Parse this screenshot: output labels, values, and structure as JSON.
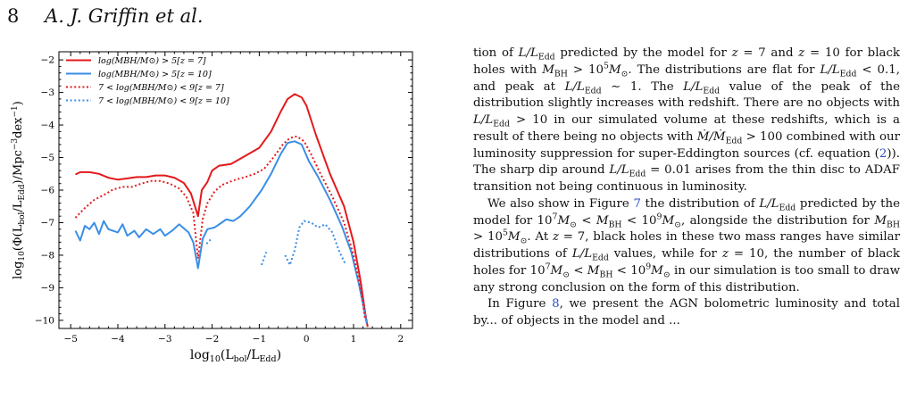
{
  "header": {
    "page_number": "8",
    "authors": "A. J. Griffin et al."
  },
  "figure": {
    "chart_data": {
      "type": "line",
      "xlabel": "log10(Lbol/LEdd)",
      "ylabel": "log10(Φ(Lbol/LEdd)/Mpc−3dex−1)",
      "xlim": [
        -5.25,
        2.25
      ],
      "ylim": [
        -10.25,
        -1.75
      ],
      "xticks": [
        -5,
        -4,
        -3,
        -2,
        -1,
        0,
        1,
        2
      ],
      "yticks": [
        -10,
        -9,
        -8,
        -7,
        -6,
        -5,
        -4,
        -3,
        -2
      ],
      "grid": false,
      "legend_position": "top-left",
      "series": [
        {
          "name": "log(MBH/M⊙) > 5[z = 7]",
          "color": "#e41a1c",
          "style": "solid",
          "points": [
            [
              -4.9,
              -5.52
            ],
            [
              -4.8,
              -5.45
            ],
            [
              -4.6,
              -5.45
            ],
            [
              -4.4,
              -5.5
            ],
            [
              -4.2,
              -5.62
            ],
            [
              -4.0,
              -5.68
            ],
            [
              -3.8,
              -5.64
            ],
            [
              -3.6,
              -5.6
            ],
            [
              -3.4,
              -5.6
            ],
            [
              -3.2,
              -5.55
            ],
            [
              -3.0,
              -5.55
            ],
            [
              -2.8,
              -5.62
            ],
            [
              -2.6,
              -5.78
            ],
            [
              -2.45,
              -6.1
            ],
            [
              -2.3,
              -6.8
            ],
            [
              -2.22,
              -6.0
            ],
            [
              -2.1,
              -5.75
            ],
            [
              -2.0,
              -5.4
            ],
            [
              -1.85,
              -5.25
            ],
            [
              -1.6,
              -5.2
            ],
            [
              -1.3,
              -4.95
            ],
            [
              -1.0,
              -4.7
            ],
            [
              -0.75,
              -4.2
            ],
            [
              -0.55,
              -3.6
            ],
            [
              -0.4,
              -3.2
            ],
            [
              -0.25,
              -3.05
            ],
            [
              -0.1,
              -3.15
            ],
            [
              0.0,
              -3.4
            ],
            [
              0.2,
              -4.3
            ],
            [
              0.5,
              -5.5
            ],
            [
              0.8,
              -6.5
            ],
            [
              1.0,
              -7.6
            ],
            [
              1.15,
              -8.8
            ],
            [
              1.25,
              -9.8
            ],
            [
              1.3,
              -10.2
            ]
          ]
        },
        {
          "name": "log(MBH/M⊙) > 5[z = 10]",
          "color": "#3a8ee6",
          "style": "solid",
          "points": [
            [
              -4.9,
              -7.25
            ],
            [
              -4.8,
              -7.55
            ],
            [
              -4.7,
              -7.1
            ],
            [
              -4.6,
              -7.2
            ],
            [
              -4.5,
              -7.0
            ],
            [
              -4.4,
              -7.35
            ],
            [
              -4.3,
              -6.95
            ],
            [
              -4.2,
              -7.2
            ],
            [
              -4.0,
              -7.3
            ],
            [
              -3.9,
              -7.05
            ],
            [
              -3.8,
              -7.4
            ],
            [
              -3.65,
              -7.25
            ],
            [
              -3.55,
              -7.45
            ],
            [
              -3.4,
              -7.2
            ],
            [
              -3.25,
              -7.35
            ],
            [
              -3.1,
              -7.2
            ],
            [
              -3.0,
              -7.4
            ],
            [
              -2.85,
              -7.25
            ],
            [
              -2.7,
              -7.05
            ],
            [
              -2.5,
              -7.3
            ],
            [
              -2.4,
              -7.6
            ],
            [
              -2.3,
              -8.4
            ],
            [
              -2.2,
              -7.5
            ],
            [
              -2.1,
              -7.2
            ],
            [
              -1.95,
              -7.15
            ],
            [
              -1.8,
              -7.0
            ],
            [
              -1.7,
              -6.9
            ],
            [
              -1.55,
              -6.95
            ],
            [
              -1.4,
              -6.8
            ],
            [
              -1.2,
              -6.5
            ],
            [
              -0.95,
              -6.0
            ],
            [
              -0.75,
              -5.5
            ],
            [
              -0.55,
              -4.9
            ],
            [
              -0.4,
              -4.55
            ],
            [
              -0.25,
              -4.5
            ],
            [
              -0.1,
              -4.6
            ],
            [
              0.05,
              -5.1
            ],
            [
              0.25,
              -5.6
            ],
            [
              0.5,
              -6.3
            ],
            [
              0.75,
              -7.1
            ],
            [
              0.95,
              -7.9
            ],
            [
              1.1,
              -8.8
            ],
            [
              1.2,
              -9.5
            ],
            [
              1.28,
              -10.1
            ]
          ]
        },
        {
          "name": "7 < log(MBH/M⊙) < 9[z = 7]",
          "color": "#e41a1c",
          "style": "dotted",
          "points": [
            [
              -4.9,
              -6.85
            ],
            [
              -4.7,
              -6.55
            ],
            [
              -4.5,
              -6.3
            ],
            [
              -4.3,
              -6.15
            ],
            [
              -4.1,
              -5.98
            ],
            [
              -3.9,
              -5.9
            ],
            [
              -3.7,
              -5.9
            ],
            [
              -3.5,
              -5.8
            ],
            [
              -3.3,
              -5.72
            ],
            [
              -3.1,
              -5.72
            ],
            [
              -2.9,
              -5.8
            ],
            [
              -2.7,
              -5.95
            ],
            [
              -2.55,
              -6.2
            ],
            [
              -2.4,
              -6.7
            ],
            [
              -2.3,
              -8.1
            ],
            [
              -2.2,
              -6.9
            ],
            [
              -2.1,
              -6.4
            ],
            [
              -1.95,
              -6.05
            ],
            [
              -1.8,
              -5.85
            ],
            [
              -1.55,
              -5.7
            ],
            [
              -1.3,
              -5.6
            ],
            [
              -1.1,
              -5.5
            ],
            [
              -0.9,
              -5.35
            ],
            [
              -0.7,
              -5.0
            ],
            [
              -0.5,
              -4.6
            ],
            [
              -0.35,
              -4.4
            ],
            [
              -0.2,
              -4.35
            ],
            [
              -0.05,
              -4.5
            ],
            [
              0.1,
              -4.9
            ],
            [
              0.3,
              -5.5
            ],
            [
              0.55,
              -6.2
            ],
            [
              0.8,
              -7.0
            ],
            [
              1.0,
              -8.0
            ],
            [
              1.15,
              -9.0
            ],
            [
              1.25,
              -10.0
            ]
          ]
        },
        {
          "name": "7 < log(MBH/M⊙) < 9[z = 10]",
          "color": "#3a8ee6",
          "style": "dotted",
          "segments": [
            [
              [
                -2.12,
                -7.65
              ],
              [
                -2.02,
                -7.5
              ]
            ],
            [
              [
                -0.95,
                -8.3
              ],
              [
                -0.85,
                -7.9
              ]
            ],
            [
              [
                -0.45,
                -8.0
              ],
              [
                -0.35,
                -8.3
              ],
              [
                -0.25,
                -7.85
              ],
              [
                -0.15,
                -7.15
              ],
              [
                -0.05,
                -6.95
              ],
              [
                0.1,
                -7.0
              ],
              [
                0.25,
                -7.15
              ],
              [
                0.4,
                -7.05
              ],
              [
                0.55,
                -7.3
              ],
              [
                0.7,
                -7.9
              ],
              [
                0.82,
                -8.25
              ]
            ]
          ]
        }
      ]
    }
  },
  "body_text": {
    "p1": [
      {
        "t": "tion of "
      },
      {
        "t": "L/L",
        "i": true
      },
      {
        "t": "Edd",
        "sub": true
      },
      {
        "t": " predicted by the model for "
      },
      {
        "t": "z",
        "i": true
      },
      {
        "t": " = 7 and "
      },
      {
        "t": "z",
        "i": true
      },
      {
        "t": " = 10 for black holes with "
      },
      {
        "t": "M",
        "i": true
      },
      {
        "t": "BH",
        "sub": true
      },
      {
        "t": " > 10"
      },
      {
        "t": "5",
        "sup": true
      },
      {
        "t": "M",
        "i": true
      },
      {
        "t": "⊙",
        "sub": true
      },
      {
        "t": ". The distributions are flat for "
      },
      {
        "t": "L/L",
        "i": true
      },
      {
        "t": "Edd",
        "sub": true
      },
      {
        "t": " < 0.1, and peak at "
      },
      {
        "t": "L/L",
        "i": true
      },
      {
        "t": "Edd",
        "sub": true
      },
      {
        "t": " ∼ 1. The "
      },
      {
        "t": "L/L",
        "i": true
      },
      {
        "t": "Edd",
        "sub": true
      },
      {
        "t": " value of the peak of the distribution slightly increases with redshift. There are no objects with "
      },
      {
        "t": "L/L",
        "i": true
      },
      {
        "t": "Edd",
        "sub": true
      },
      {
        "t": " > 10 in our simulated volume at these redshifts, which is a result of there being no objects with "
      },
      {
        "t": "Ṁ/Ṁ",
        "i": true
      },
      {
        "t": "Edd",
        "sub": true
      },
      {
        "t": " > 100 combined with our luminosity suppression for super-Eddington sources (cf. equation ("
      },
      {
        "t": "2",
        "ref": true
      },
      {
        "t": ")). The sharp dip around "
      },
      {
        "t": "L/L",
        "i": true
      },
      {
        "t": "Edd",
        "sub": true
      },
      {
        "t": " = 0.01 arises from the thin disc to ADAF transition not being continuous in luminosity."
      }
    ],
    "p2": [
      {
        "t": "We also show in Figure "
      },
      {
        "t": "7",
        "ref": true
      },
      {
        "t": " the distribution of "
      },
      {
        "t": "L/L",
        "i": true
      },
      {
        "t": "Edd",
        "sub": true
      },
      {
        "t": " predicted by the model for 10"
      },
      {
        "t": "7",
        "sup": true
      },
      {
        "t": "M",
        "i": true
      },
      {
        "t": "⊙",
        "sub": true
      },
      {
        "t": " < "
      },
      {
        "t": "M",
        "i": true
      },
      {
        "t": "BH",
        "sub": true
      },
      {
        "t": " < 10"
      },
      {
        "t": "9",
        "sup": true
      },
      {
        "t": "M",
        "i": true
      },
      {
        "t": "⊙",
        "sub": true
      },
      {
        "t": ", alongside the distribution for "
      },
      {
        "t": "M",
        "i": true
      },
      {
        "t": "BH",
        "sub": true
      },
      {
        "t": " > 10"
      },
      {
        "t": "5",
        "sup": true
      },
      {
        "t": "M",
        "i": true
      },
      {
        "t": "⊙",
        "sub": true
      },
      {
        "t": ". At "
      },
      {
        "t": "z",
        "i": true
      },
      {
        "t": " = 7, black holes in these two mass ranges have similar distributions of "
      },
      {
        "t": "L/L",
        "i": true
      },
      {
        "t": "Edd",
        "sub": true
      },
      {
        "t": " values, while for "
      },
      {
        "t": "z",
        "i": true
      },
      {
        "t": " = 10, the number of black holes for 10"
      },
      {
        "t": "7",
        "sup": true
      },
      {
        "t": "M",
        "i": true
      },
      {
        "t": "⊙",
        "sub": true
      },
      {
        "t": " < "
      },
      {
        "t": "M",
        "i": true
      },
      {
        "t": "BH",
        "sub": true
      },
      {
        "t": " < 10"
      },
      {
        "t": "9",
        "sup": true
      },
      {
        "t": "M",
        "i": true
      },
      {
        "t": "⊙",
        "sub": true
      },
      {
        "t": " in our simulation is too small to draw any strong conclusion on the form of this distribution."
      }
    ],
    "p3": [
      {
        "t": "In Figure "
      },
      {
        "t": "8",
        "ref": true
      },
      {
        "t": ", we present the AGN bolometric luminosity and total by... of objects in the model and ... "
      }
    ]
  }
}
